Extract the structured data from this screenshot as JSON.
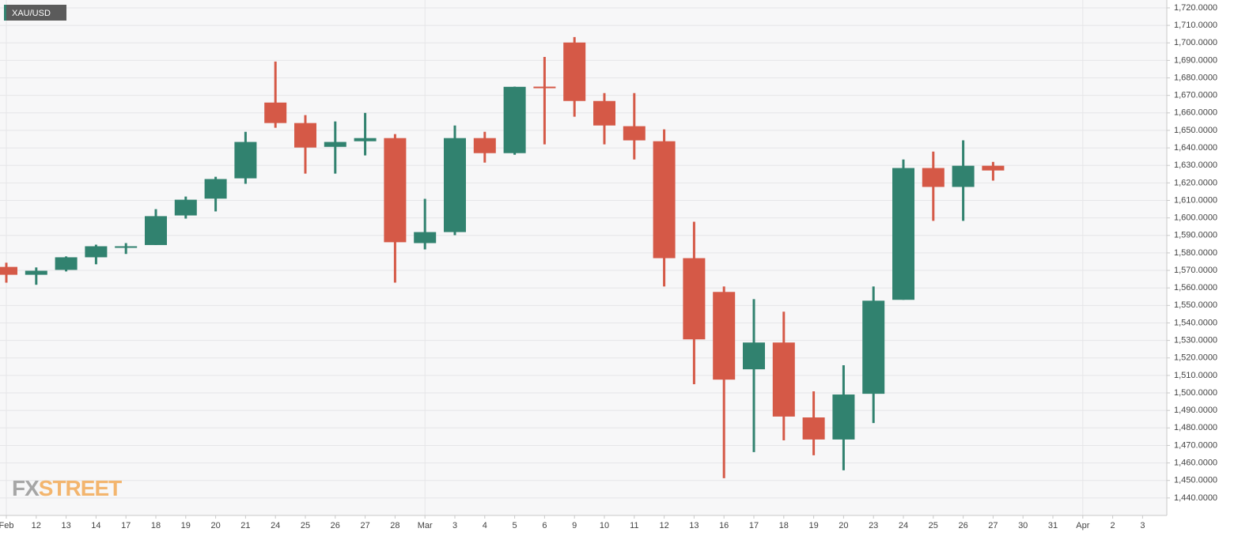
{
  "chart_data": {
    "type": "candlestick",
    "categories": [
      "Feb",
      "12",
      "13",
      "14",
      "17",
      "18",
      "19",
      "20",
      "21",
      "24",
      "25",
      "26",
      "27",
      "28",
      "Mar",
      "3",
      "4",
      "5",
      "6",
      "9",
      "10",
      "11",
      "12",
      "13",
      "16",
      "17",
      "18",
      "19",
      "20",
      "23",
      "24",
      "25",
      "26",
      "27",
      "30",
      "31",
      "Apr",
      "2",
      "3"
    ],
    "series": [
      {
        "name": "XAU/USD",
        "up_color": "#31826f",
        "down_color": "#d55947",
        "open": [
          1572,
          1567.5,
          1570.3,
          1577.5,
          1583,
          1584.5,
          1601.4,
          1611,
          1622.6,
          1665.9,
          1654.2,
          1640.6,
          1643.8,
          1645.6,
          1585.6,
          1591.9,
          1645.6,
          1637,
          1675,
          1700.2,
          1666.8,
          1652.4,
          1643.8,
          1577,
          1557.7,
          1513.5,
          1528.8,
          1486,
          1473.4,
          1499.5,
          1553.2,
          1628.5,
          1617.7,
          1629.8,
          null,
          null,
          null,
          null,
          null
        ],
        "high": [
          1574.4,
          1571.7,
          1578,
          1584.7,
          1585.6,
          1605,
          1612.2,
          1623.5,
          1649.2,
          1689.3,
          1658.7,
          1655.1,
          1660,
          1647.9,
          1610.9,
          1652.8,
          1649.2,
          1675,
          1692,
          1703.3,
          1671.3,
          1671.3,
          1650.6,
          1597.8,
          1560.8,
          1553.6,
          1546.4,
          1500.9,
          1515.8,
          1560.8,
          1633.4,
          1637.9,
          1644.3,
          1632,
          null,
          null,
          null,
          null,
          null
        ],
        "low": [
          1563,
          1561.8,
          1569.4,
          1573.5,
          1579.4,
          1584.5,
          1599.6,
          1603.7,
          1619.5,
          1651.5,
          1625.3,
          1625.3,
          1635.7,
          1563,
          1582,
          1590.1,
          1631.6,
          1636.1,
          1642,
          1657.8,
          1642,
          1633.4,
          1560.8,
          1505,
          1451.3,
          1466.2,
          1472.9,
          1464.4,
          1455.8,
          1482.8,
          1553.2,
          1598.3,
          1598.3,
          1621.3,
          null,
          null,
          null,
          null,
          null
        ],
        "close": [
          1567.5,
          1569.8,
          1577.5,
          1583.8,
          1583.8,
          1601,
          1610.4,
          1622.2,
          1643.4,
          1654.2,
          1640.2,
          1643.4,
          1645.6,
          1586.1,
          1591.9,
          1645.6,
          1637,
          1674.9,
          1674.5,
          1666.8,
          1652.8,
          1644.3,
          1577,
          1530.6,
          1507.6,
          1528.8,
          1486.5,
          1473.4,
          1499.1,
          1552.7,
          1628.5,
          1617.7,
          1629.8,
          1627.1,
          null,
          null,
          null,
          null,
          null
        ]
      }
    ],
    "ylim": [
      1430,
      1724.5
    ],
    "yticks": [
      {
        "value": 1440,
        "label": "1,440.0000"
      },
      {
        "value": 1450,
        "label": "1,450.0000"
      },
      {
        "value": 1460,
        "label": "1,460.0000"
      },
      {
        "value": 1470,
        "label": "1,470.0000"
      },
      {
        "value": 1480,
        "label": "1,480.0000"
      },
      {
        "value": 1490,
        "label": "1,490.0000"
      },
      {
        "value": 1500,
        "label": "1,500.0000"
      },
      {
        "value": 1510,
        "label": "1,510.0000"
      },
      {
        "value": 1520,
        "label": "1,520.0000"
      },
      {
        "value": 1530,
        "label": "1,530.0000"
      },
      {
        "value": 1540,
        "label": "1,540.0000"
      },
      {
        "value": 1550,
        "label": "1,550.0000"
      },
      {
        "value": 1560,
        "label": "1,560.0000"
      },
      {
        "value": 1570,
        "label": "1,570.0000"
      },
      {
        "value": 1580,
        "label": "1,580.0000"
      },
      {
        "value": 1590,
        "label": "1,590.0000"
      },
      {
        "value": 1600,
        "label": "1,600.0000"
      },
      {
        "value": 1610,
        "label": "1,610.0000"
      },
      {
        "value": 1620,
        "label": "1,620.0000"
      },
      {
        "value": 1630,
        "label": "1,630.0000"
      },
      {
        "value": 1640,
        "label": "1,640.0000"
      },
      {
        "value": 1650,
        "label": "1,650.0000"
      },
      {
        "value": 1660,
        "label": "1,660.0000"
      },
      {
        "value": 1670,
        "label": "1,670.0000"
      },
      {
        "value": 1680,
        "label": "1,680.0000"
      },
      {
        "value": 1690,
        "label": "1,690.0000"
      },
      {
        "value": 1700,
        "label": "1,700.0000"
      },
      {
        "value": 1710,
        "label": "1,710.0000"
      },
      {
        "value": 1720,
        "label": "1,720.0000"
      }
    ],
    "grid": true,
    "watermark": {
      "prefix": "FX",
      "suffix": "STREET"
    }
  }
}
